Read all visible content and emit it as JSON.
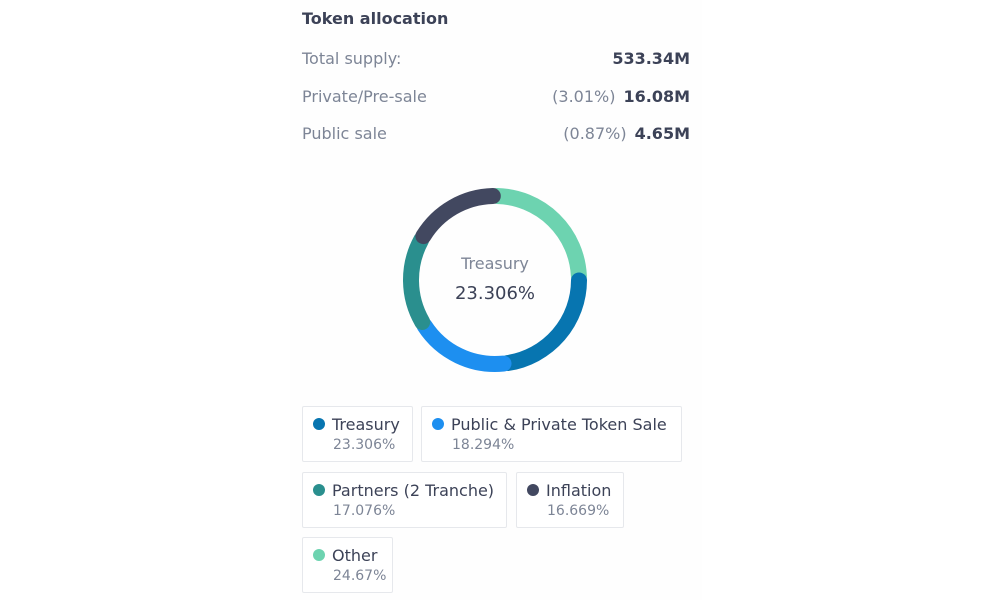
{
  "title": "Token allocation",
  "stats": [
    {
      "label": "Total supply:",
      "pct": "",
      "value": "533.34M"
    },
    {
      "label": "Private/Pre-sale",
      "pct": "(3.01%)",
      "value": "16.08M"
    },
    {
      "label": "Public sale",
      "pct": "(0.87%)",
      "value": "4.65M"
    }
  ],
  "chart_data": {
    "type": "pie",
    "title": "",
    "center_label": "Treasury",
    "center_value": "23.306%",
    "slices": [
      {
        "name": "Treasury",
        "value": 23.306,
        "label": "23.306%",
        "color": "#0775b0"
      },
      {
        "name": "Public & Private Token Sale",
        "value": 18.294,
        "label": "18.294%",
        "color": "#1d8ff0"
      },
      {
        "name": "Partners (2 Tranche)",
        "value": 17.076,
        "label": "17.076%",
        "color": "#2a8f8e"
      },
      {
        "name": "Inflation",
        "value": 16.669,
        "label": "16.669%",
        "color": "#424860"
      },
      {
        "name": "Other",
        "value": 24.67,
        "label": "24.67%",
        "color": "#6dd3b0"
      }
    ]
  }
}
